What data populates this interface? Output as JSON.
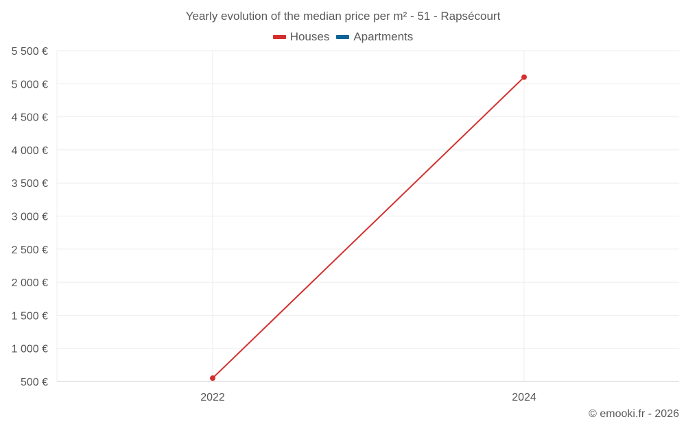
{
  "chart_data": {
    "type": "line",
    "title": "Yearly evolution of the median price per m² - 51 - Rapsécourt",
    "categories": [
      "2022",
      "2024"
    ],
    "y_ticks": [
      500,
      1000,
      1500,
      2000,
      2500,
      3000,
      3500,
      4000,
      4500,
      5000,
      5500
    ],
    "y_tick_labels": [
      "500 €",
      "1 000 €",
      "1 500 €",
      "2 000 €",
      "2 500 €",
      "3 000 €",
      "3 500 €",
      "4 000 €",
      "4 500 €",
      "5 000 €",
      "5 500 €"
    ],
    "ylim": [
      500,
      5500
    ],
    "xlabel": "",
    "ylabel": "",
    "grid": true,
    "legend_position": "top-center",
    "series": [
      {
        "name": "Houses",
        "color": "#d32f2f",
        "values": [
          550,
          5100
        ]
      },
      {
        "name": "Apartments",
        "color": "#0d6497",
        "values": [
          null,
          null
        ]
      }
    ]
  },
  "footer": {
    "text": "© emooki.fr - 2026"
  }
}
